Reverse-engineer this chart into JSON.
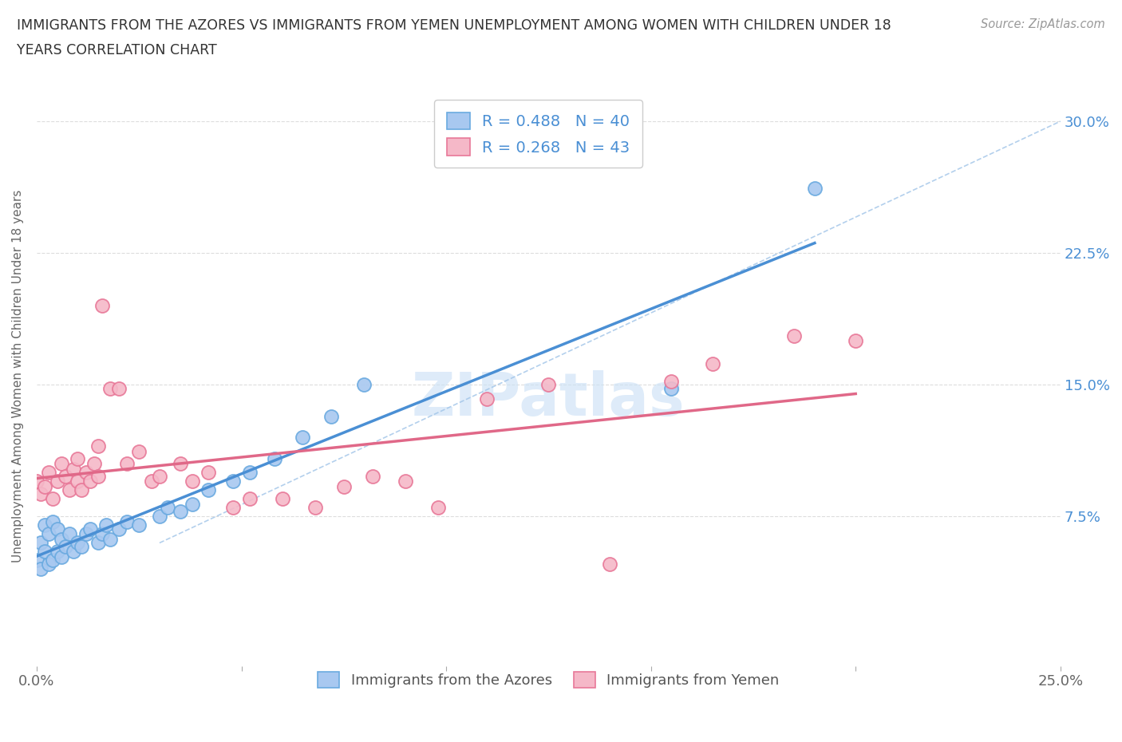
{
  "title_line1": "IMMIGRANTS FROM THE AZORES VS IMMIGRANTS FROM YEMEN UNEMPLOYMENT AMONG WOMEN WITH CHILDREN UNDER 18",
  "title_line2": "YEARS CORRELATION CHART",
  "source_text": "Source: ZipAtlas.com",
  "ylabel": "Unemployment Among Women with Children Under 18 years",
  "xlim": [
    0.0,
    0.25
  ],
  "ylim": [
    -0.01,
    0.32
  ],
  "x_ticks": [
    0.0,
    0.05,
    0.1,
    0.15,
    0.2,
    0.25
  ],
  "x_tick_labels": [
    "0.0%",
    "",
    "",
    "",
    "",
    "25.0%"
  ],
  "y_ticks": [
    0.0,
    0.075,
    0.15,
    0.225,
    0.3
  ],
  "y_tick_labels": [
    "",
    "7.5%",
    "15.0%",
    "22.5%",
    "30.0%"
  ],
  "azores_R": 0.488,
  "azores_N": 40,
  "yemen_R": 0.268,
  "yemen_N": 43,
  "blue_color": "#a8c8f0",
  "pink_color": "#f5b8c8",
  "blue_edge_color": "#6aaae0",
  "pink_edge_color": "#e87898",
  "blue_line_color": "#4a8fd4",
  "pink_line_color": "#e06888",
  "dash_line_color": "#a0c4e8",
  "legend_text_color": "#4a8fd4",
  "watermark_color": "#c8dff5",
  "watermark": "ZIPatlas",
  "azores_x": [
    0.0,
    0.001,
    0.001,
    0.002,
    0.002,
    0.003,
    0.003,
    0.004,
    0.004,
    0.005,
    0.005,
    0.006,
    0.006,
    0.007,
    0.008,
    0.009,
    0.01,
    0.011,
    0.012,
    0.013,
    0.015,
    0.016,
    0.017,
    0.018,
    0.02,
    0.022,
    0.025,
    0.03,
    0.032,
    0.035,
    0.038,
    0.042,
    0.048,
    0.052,
    0.058,
    0.065,
    0.072,
    0.08,
    0.155,
    0.19
  ],
  "azores_y": [
    0.05,
    0.045,
    0.06,
    0.055,
    0.07,
    0.048,
    0.065,
    0.05,
    0.072,
    0.055,
    0.068,
    0.052,
    0.062,
    0.058,
    0.065,
    0.055,
    0.06,
    0.058,
    0.065,
    0.068,
    0.06,
    0.065,
    0.07,
    0.062,
    0.068,
    0.072,
    0.07,
    0.075,
    0.08,
    0.078,
    0.082,
    0.09,
    0.095,
    0.1,
    0.108,
    0.12,
    0.132,
    0.15,
    0.148,
    0.262
  ],
  "yemen_x": [
    0.0,
    0.001,
    0.002,
    0.003,
    0.004,
    0.005,
    0.006,
    0.007,
    0.008,
    0.009,
    0.01,
    0.01,
    0.011,
    0.012,
    0.013,
    0.014,
    0.015,
    0.015,
    0.016,
    0.018,
    0.02,
    0.022,
    0.025,
    0.028,
    0.03,
    0.035,
    0.038,
    0.042,
    0.048,
    0.052,
    0.06,
    0.068,
    0.075,
    0.082,
    0.09,
    0.098,
    0.11,
    0.125,
    0.14,
    0.155,
    0.165,
    0.185,
    0.2
  ],
  "yemen_y": [
    0.095,
    0.088,
    0.092,
    0.1,
    0.085,
    0.095,
    0.105,
    0.098,
    0.09,
    0.102,
    0.095,
    0.108,
    0.09,
    0.1,
    0.095,
    0.105,
    0.098,
    0.115,
    0.195,
    0.148,
    0.148,
    0.105,
    0.112,
    0.095,
    0.098,
    0.105,
    0.095,
    0.1,
    0.08,
    0.085,
    0.085,
    0.08,
    0.092,
    0.098,
    0.095,
    0.08,
    0.142,
    0.15,
    0.048,
    0.152,
    0.162,
    0.178,
    0.175
  ]
}
